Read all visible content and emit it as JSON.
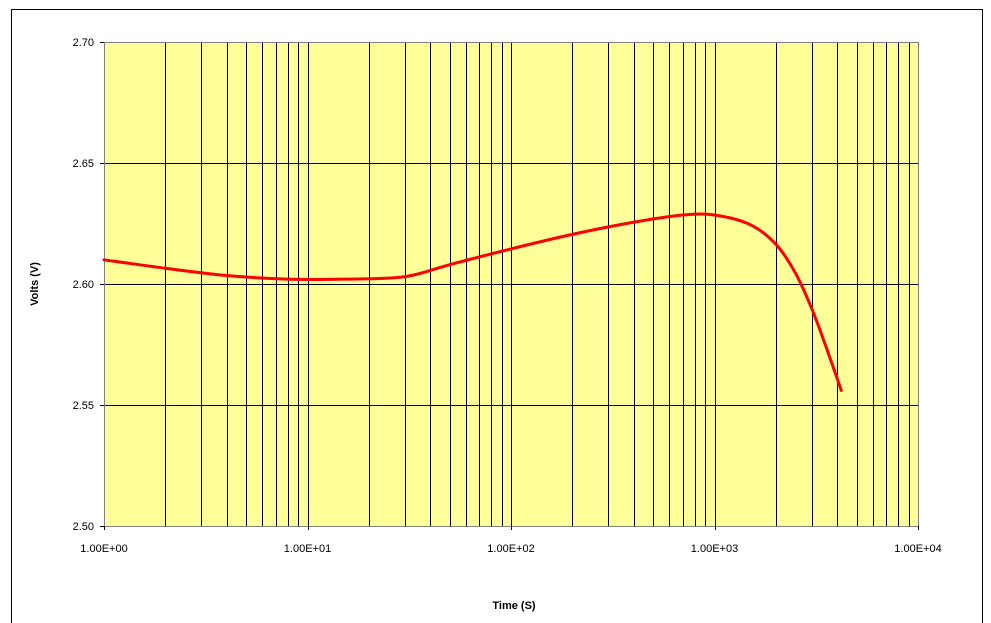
{
  "chart_data": {
    "type": "line",
    "title": "",
    "xlabel": "Time (S)",
    "ylabel": "Volts (V)",
    "x_scale": "log",
    "xlim": [
      1,
      10000
    ],
    "ylim": [
      2.5,
      2.7
    ],
    "x_tick_values": [
      1,
      10,
      100,
      1000,
      10000
    ],
    "x_tick_labels": [
      "1.00E+00",
      "1.00E+01",
      "1.00E+02",
      "1.00E+03",
      "1.00E+04"
    ],
    "y_tick_values": [
      2.5,
      2.55,
      2.6,
      2.65,
      2.7
    ],
    "y_tick_labels": [
      "2.50",
      "2.55",
      "2.60",
      "2.65",
      "2.70"
    ],
    "grid": true,
    "legend": "none",
    "colors": {
      "plot_background": "#ffff99",
      "line": "#ff0000",
      "grid": "#000000"
    },
    "series": [
      {
        "x": [
          1,
          2,
          4,
          8,
          15,
          30,
          50,
          100,
          200,
          400,
          700,
          1000,
          1500,
          2000,
          2500,
          3000,
          3500,
          4200
        ],
        "y": [
          2.61,
          2.6065,
          2.6035,
          2.602,
          2.602,
          2.603,
          2.608,
          2.6145,
          2.6205,
          2.6255,
          2.6285,
          2.6285,
          2.6245,
          2.6165,
          2.6045,
          2.59,
          2.575,
          2.556
        ]
      }
    ]
  }
}
